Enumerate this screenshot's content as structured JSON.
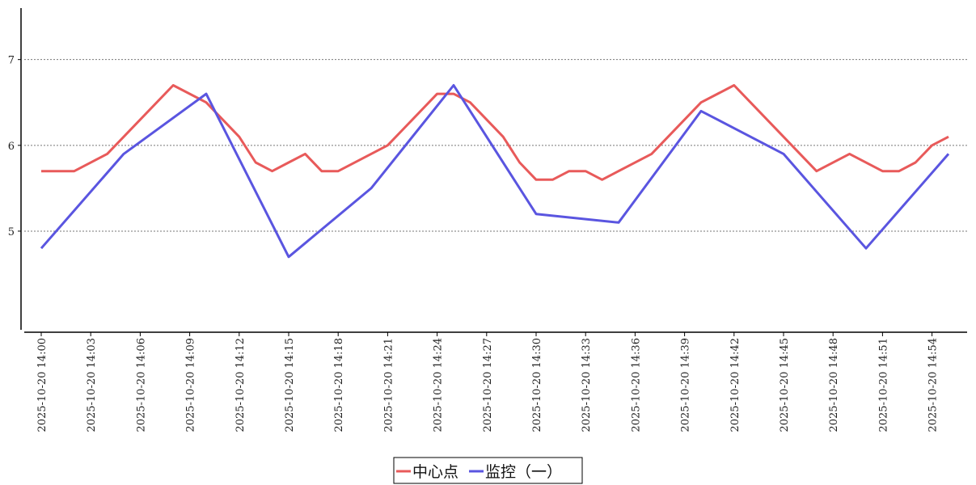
{
  "chart_data": {
    "type": "line",
    "title": "",
    "xlabel": "",
    "ylabel": "",
    "ylim": [
      3.85,
      7.6
    ],
    "yticks": [
      5,
      6,
      7
    ],
    "ytick_labels": [
      "5",
      "6",
      "7"
    ],
    "xlim": [
      "2025-10-20 14:00",
      "2025-10-20 14:55"
    ],
    "x_tick_labels": [
      "2025-10-20 14:00",
      "2025-10-20 14:03",
      "2025-10-20 14:06",
      "2025-10-20 14:09",
      "2025-10-20 14:12",
      "2025-10-20 14:15",
      "2025-10-20 14:18",
      "2025-10-20 14:21",
      "2025-10-20 14:24",
      "2025-10-20 14:27",
      "2025-10-20 14:30",
      "2025-10-20 14:33",
      "2025-10-20 14:36",
      "2025-10-20 14:39",
      "2025-10-20 14:42",
      "2025-10-20 14:45",
      "2025-10-20 14:48",
      "2025-10-20 14:51",
      "2025-10-20 14:54"
    ],
    "grid": "horizontal dotted",
    "legend": "bottom-center",
    "series": [
      {
        "name": "中心点",
        "color": "#e85a5a",
        "points": [
          {
            "x": "2025-10-20 14:00",
            "y": 5.7
          },
          {
            "x": "2025-10-20 14:02",
            "y": 5.7
          },
          {
            "x": "2025-10-20 14:04",
            "y": 5.9
          },
          {
            "x": "2025-10-20 14:08",
            "y": 6.7
          },
          {
            "x": "2025-10-20 14:10",
            "y": 6.5
          },
          {
            "x": "2025-10-20 14:12",
            "y": 6.1
          },
          {
            "x": "2025-10-20 14:13",
            "y": 5.8
          },
          {
            "x": "2025-10-20 14:14",
            "y": 5.7
          },
          {
            "x": "2025-10-20 14:15",
            "y": 5.8
          },
          {
            "x": "2025-10-20 14:16",
            "y": 5.9
          },
          {
            "x": "2025-10-20 14:17",
            "y": 5.7
          },
          {
            "x": "2025-10-20 14:18",
            "y": 5.7
          },
          {
            "x": "2025-10-20 14:21",
            "y": 6.0
          },
          {
            "x": "2025-10-20 14:24",
            "y": 6.6
          },
          {
            "x": "2025-10-20 14:25",
            "y": 6.6
          },
          {
            "x": "2025-10-20 14:26",
            "y": 6.5
          },
          {
            "x": "2025-10-20 14:28",
            "y": 6.1
          },
          {
            "x": "2025-10-20 14:29",
            "y": 5.8
          },
          {
            "x": "2025-10-20 14:30",
            "y": 5.6
          },
          {
            "x": "2025-10-20 14:31",
            "y": 5.6
          },
          {
            "x": "2025-10-20 14:32",
            "y": 5.7
          },
          {
            "x": "2025-10-20 14:33",
            "y": 5.7
          },
          {
            "x": "2025-10-20 14:34",
            "y": 5.6
          },
          {
            "x": "2025-10-20 14:37",
            "y": 5.9
          },
          {
            "x": "2025-10-20 14:40",
            "y": 6.5
          },
          {
            "x": "2025-10-20 14:42",
            "y": 6.7
          },
          {
            "x": "2025-10-20 14:47",
            "y": 5.7
          },
          {
            "x": "2025-10-20 14:49",
            "y": 5.9
          },
          {
            "x": "2025-10-20 14:51",
            "y": 5.7
          },
          {
            "x": "2025-10-20 14:52",
            "y": 5.7
          },
          {
            "x": "2025-10-20 14:53",
            "y": 5.8
          },
          {
            "x": "2025-10-20 14:54",
            "y": 6.0
          },
          {
            "x": "2025-10-20 14:55",
            "y": 6.1
          }
        ]
      },
      {
        "name": "监控（一）",
        "color": "#5a55e0",
        "points": [
          {
            "x": "2025-10-20 14:00",
            "y": 4.8
          },
          {
            "x": "2025-10-20 14:05",
            "y": 5.9
          },
          {
            "x": "2025-10-20 14:10",
            "y": 6.6
          },
          {
            "x": "2025-10-20 14:15",
            "y": 4.7
          },
          {
            "x": "2025-10-20 14:20",
            "y": 5.5
          },
          {
            "x": "2025-10-20 14:25",
            "y": 6.7
          },
          {
            "x": "2025-10-20 14:30",
            "y": 5.2
          },
          {
            "x": "2025-10-20 14:35",
            "y": 5.1
          },
          {
            "x": "2025-10-20 14:40",
            "y": 6.4
          },
          {
            "x": "2025-10-20 14:45",
            "y": 5.9
          },
          {
            "x": "2025-10-20 14:50",
            "y": 4.8
          },
          {
            "x": "2025-10-20 14:55",
            "y": 5.9
          }
        ]
      }
    ]
  }
}
